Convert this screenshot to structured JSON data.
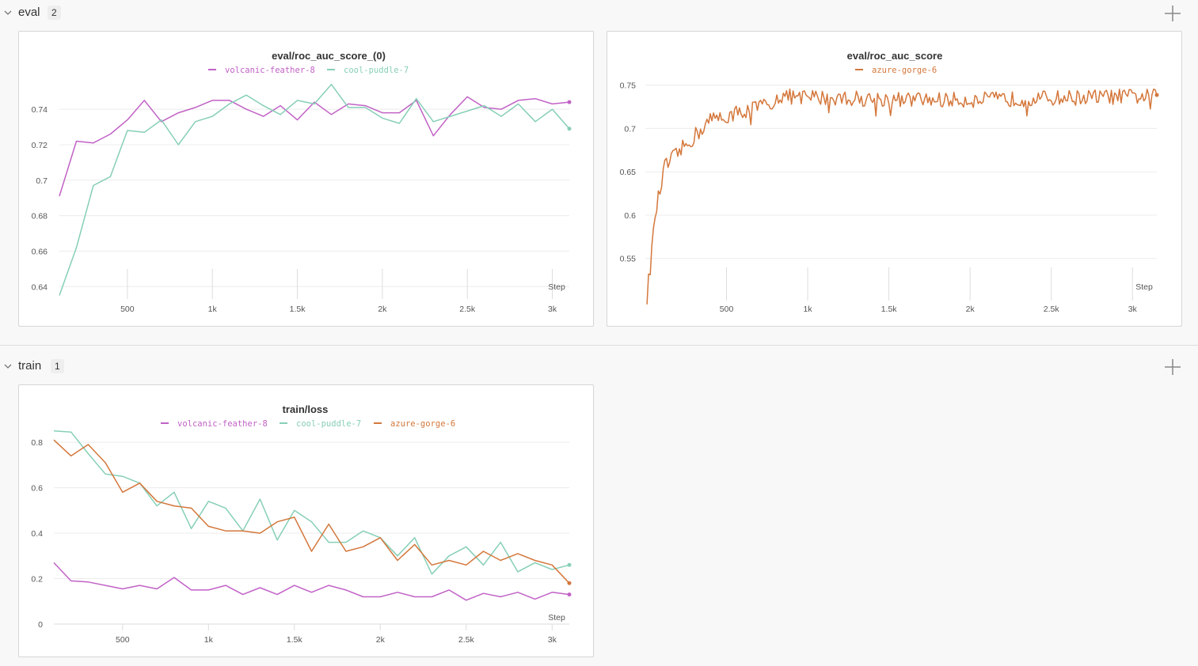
{
  "sections": [
    {
      "title": "eval",
      "count": "2"
    },
    {
      "title": "train",
      "count": "1"
    }
  ],
  "colors": {
    "volcanic-feather-8": "#c162c6",
    "cool-puddle-7": "#86cfb7",
    "azure-gorge-6": "#d4773b"
  },
  "icons": {
    "collapse": "chevron-down-icon",
    "add": "plus-icon"
  },
  "charts": [
    {
      "title": "eval/roc_auc_score_(0)",
      "xlabel": "Step",
      "legend": [
        "volcanic-feather-8",
        "cool-puddle-7"
      ],
      "x_ticks": [
        "500",
        "1k",
        "1.5k",
        "2k",
        "2.5k",
        "3k"
      ],
      "y_ticks": [
        "0.64",
        "0.66",
        "0.68",
        "0.7",
        "0.72",
        "0.74"
      ]
    },
    {
      "title": "eval/roc_auc_score",
      "xlabel": "Step",
      "legend": [
        "azure-gorge-6"
      ],
      "x_ticks": [
        "500",
        "1k",
        "1.5k",
        "2k",
        "2.5k",
        "3k"
      ],
      "y_ticks": [
        "0.55",
        "0.6",
        "0.65",
        "0.7",
        "0.75"
      ]
    },
    {
      "title": "train/loss",
      "xlabel": "Step",
      "legend": [
        "volcanic-feather-8",
        "cool-puddle-7",
        "azure-gorge-6"
      ],
      "x_ticks": [
        "500",
        "1k",
        "1.5k",
        "2k",
        "2.5k",
        "3k"
      ],
      "y_ticks": [
        "0",
        "0.2",
        "0.4",
        "0.6",
        "0.8"
      ]
    }
  ],
  "chart_data": [
    {
      "type": "line",
      "title": "eval/roc_auc_score_(0)",
      "xlabel": "Step",
      "ylim": [
        0.633,
        0.757
      ],
      "xlim": [
        100,
        3100
      ],
      "series": [
        {
          "name": "volcanic-feather-8",
          "x": [
            100,
            200,
            300,
            400,
            500,
            600,
            700,
            800,
            900,
            1000,
            1100,
            1200,
            1300,
            1400,
            1500,
            1600,
            1700,
            1800,
            1900,
            2000,
            2100,
            2200,
            2300,
            2400,
            2500,
            2600,
            2700,
            2800,
            2900,
            3000,
            3100
          ],
          "y": [
            0.691,
            0.722,
            0.721,
            0.726,
            0.734,
            0.745,
            0.733,
            0.738,
            0.741,
            0.745,
            0.745,
            0.74,
            0.736,
            0.742,
            0.734,
            0.744,
            0.737,
            0.743,
            0.742,
            0.738,
            0.738,
            0.745,
            0.725,
            0.737,
            0.747,
            0.741,
            0.74,
            0.745,
            0.746,
            0.743,
            0.744
          ]
        },
        {
          "name": "cool-puddle-7",
          "x": [
            100,
            200,
            300,
            400,
            500,
            600,
            700,
            800,
            900,
            1000,
            1100,
            1200,
            1300,
            1400,
            1500,
            1600,
            1700,
            1800,
            1900,
            2000,
            2100,
            2200,
            2300,
            2400,
            2500,
            2600,
            2700,
            2800,
            2900,
            3000,
            3100
          ],
          "y": [
            0.635,
            0.662,
            0.697,
            0.702,
            0.728,
            0.727,
            0.734,
            0.72,
            0.733,
            0.736,
            0.743,
            0.748,
            0.742,
            0.737,
            0.745,
            0.743,
            0.754,
            0.741,
            0.741,
            0.735,
            0.732,
            0.746,
            0.733,
            0.736,
            0.739,
            0.742,
            0.736,
            0.743,
            0.733,
            0.74,
            0.729
          ]
        }
      ]
    },
    {
      "type": "line",
      "title": "eval/roc_auc_score",
      "xlabel": "Step",
      "ylim": [
        0.505,
        0.757
      ],
      "xlim": [
        0,
        3150
      ],
      "series": [
        {
          "name": "azure-gorge-6",
          "x_start": 10,
          "x_step": 10,
          "x_end": 3150,
          "note": "dense noisy curve rising from 0.505 to plateau ~0.74"
        }
      ]
    },
    {
      "type": "line",
      "title": "train/loss",
      "xlabel": "Step",
      "ylim": [
        0,
        0.87
      ],
      "xlim": [
        100,
        3100
      ],
      "series": [
        {
          "name": "volcanic-feather-8",
          "x": [
            100,
            200,
            300,
            400,
            500,
            600,
            700,
            800,
            900,
            1000,
            1100,
            1200,
            1300,
            1400,
            1500,
            1600,
            1700,
            1800,
            1900,
            2000,
            2100,
            2200,
            2300,
            2400,
            2500,
            2600,
            2700,
            2800,
            2900,
            3000,
            3100
          ],
          "y": [
            0.27,
            0.19,
            0.185,
            0.17,
            0.155,
            0.17,
            0.155,
            0.205,
            0.15,
            0.15,
            0.17,
            0.13,
            0.16,
            0.13,
            0.17,
            0.14,
            0.17,
            0.15,
            0.12,
            0.12,
            0.14,
            0.12,
            0.12,
            0.15,
            0.105,
            0.135,
            0.12,
            0.14,
            0.11,
            0.14,
            0.13
          ]
        },
        {
          "name": "cool-puddle-7",
          "x": [
            100,
            200,
            300,
            400,
            500,
            600,
            700,
            800,
            900,
            1000,
            1100,
            1200,
            1300,
            1400,
            1500,
            1600,
            1700,
            1800,
            1900,
            2000,
            2100,
            2200,
            2300,
            2400,
            2500,
            2600,
            2700,
            2800,
            2900,
            3000,
            3100
          ],
          "y": [
            0.85,
            0.845,
            0.75,
            0.66,
            0.65,
            0.62,
            0.52,
            0.58,
            0.42,
            0.54,
            0.51,
            0.41,
            0.55,
            0.37,
            0.5,
            0.45,
            0.36,
            0.36,
            0.41,
            0.38,
            0.3,
            0.38,
            0.22,
            0.3,
            0.34,
            0.26,
            0.36,
            0.23,
            0.27,
            0.24,
            0.26
          ]
        },
        {
          "name": "azure-gorge-6",
          "x": [
            100,
            200,
            300,
            400,
            500,
            600,
            700,
            800,
            900,
            1000,
            1100,
            1200,
            1300,
            1400,
            1500,
            1600,
            1700,
            1800,
            1900,
            2000,
            2100,
            2200,
            2300,
            2400,
            2500,
            2600,
            2700,
            2800,
            2900,
            3000,
            3100
          ],
          "y": [
            0.81,
            0.74,
            0.79,
            0.71,
            0.58,
            0.62,
            0.54,
            0.52,
            0.51,
            0.43,
            0.41,
            0.41,
            0.4,
            0.45,
            0.47,
            0.32,
            0.44,
            0.32,
            0.34,
            0.38,
            0.28,
            0.35,
            0.26,
            0.28,
            0.26,
            0.32,
            0.28,
            0.31,
            0.28,
            0.26,
            0.18
          ]
        }
      ]
    }
  ]
}
